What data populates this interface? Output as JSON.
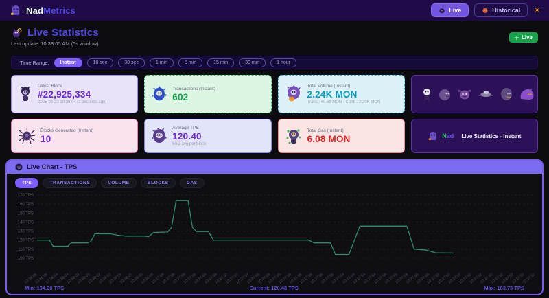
{
  "header": {
    "brand_first": "Nad",
    "brand_second": "Metrics",
    "live_button": "Live",
    "historical_button": "Historical"
  },
  "page": {
    "title": "Live Statistics",
    "live_badge": "Live",
    "last_update": "Last update: 10:38:05 AM  (5s window)"
  },
  "time_range": {
    "label": "Time Range:",
    "options": [
      "Instant",
      "10 sec",
      "30 sec",
      "1 min",
      "5 min",
      "15 min",
      "30 min",
      "1 hour"
    ],
    "active": "Instant"
  },
  "cards": {
    "latest_block": {
      "label": "Latest Block",
      "value": "#22,925,334",
      "sub": "2025-06-23 10:38:04 (2 seconds ago)"
    },
    "transactions": {
      "label": "Transactions (Instant)",
      "value": "602"
    },
    "total_volume": {
      "label": "Total Volume (Instant)",
      "value": "2.24K MON",
      "sub": "Trans.: 40.66 MON - Contr.: 2.20K MON"
    },
    "blocks_generated": {
      "label": "Blocks Generated (Instant)",
      "value": "10"
    },
    "average_tps": {
      "label": "Average TPS",
      "value": "120.40",
      "sub": "60.2 avg per block"
    },
    "total_gas": {
      "label": "Total Gas (Instant)",
      "value": "6.08 MON"
    },
    "branding": {
      "brand_n": "N",
      "brand_rest": "ad",
      "caption": "Live Statistics - Instant"
    }
  },
  "chart": {
    "title": "Live Chart - TPS",
    "tabs": [
      "TPS",
      "TRANSACTIONS",
      "VOLUME",
      "BLOCKS",
      "GAS"
    ],
    "active_tab": "TPS",
    "footer": {
      "min": "Min: 104.20 TPS",
      "current": "Current: 120.40 TPS",
      "max": "Max: 163.75 TPS"
    }
  },
  "chart_data": {
    "type": "line",
    "title": "Live Chart - TPS",
    "ylabel": "TPS",
    "y_range": [
      100,
      170
    ],
    "y_ticks": [
      "170 TPS",
      "160 TPS",
      "150 TPS",
      "140 TPS",
      "130 TPS",
      "120 TPS",
      "110 TPS",
      "100 TPS"
    ],
    "grid": true,
    "legend": "none",
    "line_color": "#2f9472",
    "min_tps": 104.2,
    "current_tps": 120.4,
    "max_tps": 163.75,
    "x_labels": [
      "10:38:05",
      "10:38:05",
      "10:38:04",
      "10:38:04",
      "10:38:03",
      "10:38:03",
      "10:38:02",
      "10:38:02",
      "10:38:01",
      "10:38:01",
      "10:38:00",
      "10:38:00",
      "10:37:59",
      "10:37:59",
      "10:37:59",
      "10:37:58",
      "10:37:58",
      "10:37:58",
      "10:37:57",
      "10:37:57",
      "10:37:57",
      "10:37:56",
      "10:37:56",
      "10:37:56",
      "10:37:56",
      "10:37:55",
      "10:37:55",
      "10:37:55",
      "10:37:55",
      "10:37:54",
      "10:37:54",
      "10:37:54",
      "10:37:54",
      "10:37:54",
      "10:37:53",
      "10:37:53",
      "10:37:53",
      "10:37:53",
      "10:37:53",
      "10:37:52",
      "10:37:52",
      "10:37:52",
      "10:37:52",
      "10:37:52",
      "10:37:52",
      "10:37:52",
      "10:37:51",
      "10:37:51"
    ],
    "points": [
      [
        0.0,
        120
      ],
      [
        0.025,
        120
      ],
      [
        0.032,
        113.3
      ],
      [
        0.062,
        113.3
      ],
      [
        0.068,
        117
      ],
      [
        0.101,
        117
      ],
      [
        0.108,
        118.5
      ],
      [
        0.116,
        127
      ],
      [
        0.148,
        127
      ],
      [
        0.162,
        125.5
      ],
      [
        0.178,
        124.5
      ],
      [
        0.215,
        124.5
      ],
      [
        0.224,
        124
      ],
      [
        0.234,
        128.5
      ],
      [
        0.262,
        129
      ],
      [
        0.27,
        134
      ],
      [
        0.279,
        163.75
      ],
      [
        0.303,
        163.75
      ],
      [
        0.312,
        134
      ],
      [
        0.32,
        129.5
      ],
      [
        0.344,
        129.5
      ],
      [
        0.354,
        120
      ],
      [
        0.545,
        120
      ],
      [
        0.556,
        117
      ],
      [
        0.589,
        117
      ],
      [
        0.599,
        104.2
      ],
      [
        0.626,
        104.2
      ],
      [
        0.648,
        135.5
      ],
      [
        0.742,
        135.5
      ],
      [
        0.757,
        110
      ],
      [
        0.782,
        109
      ],
      [
        0.8,
        106
      ],
      [
        0.836,
        105.8
      ]
    ]
  }
}
